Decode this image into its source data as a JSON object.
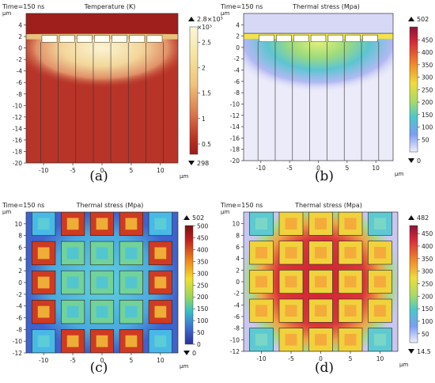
{
  "chart_data": [
    {
      "id": "a",
      "type": "heatmap",
      "caption": "(a)",
      "time_label": "Time=150 ns",
      "title": "Temperature (K)",
      "x_unit": "μm",
      "y_unit": "μm",
      "xlim": [
        -13,
        13
      ],
      "ylim": [
        -20,
        6
      ],
      "xticks": [
        -10,
        -5,
        0,
        5,
        10
      ],
      "yticks": [
        4,
        2,
        0,
        -2,
        -4,
        -6,
        -8,
        -10,
        -12,
        -14,
        -16,
        -18,
        -20
      ],
      "colorbar": {
        "max_label": "2.8×10³",
        "multiplier": "×10³",
        "ticks": [
          "2.5",
          "2",
          "1.5",
          "1",
          "0.5"
        ],
        "tick_values": [
          2.5,
          2,
          1.5,
          1,
          0.5
        ],
        "range": [
          0.298,
          2.8
        ],
        "min_label": "298",
        "palette": "thermal light"
      },
      "pillar_lines_x": [
        -10.5,
        -7.5,
        -4.5,
        -1.5,
        1.5,
        4.5,
        7.5,
        10.5
      ],
      "pillar_top_y": 1
    },
    {
      "id": "b",
      "type": "heatmap",
      "caption": "(b)",
      "time_label": "Time=150 ns",
      "title": "Thermal stress (Mpa)",
      "x_unit": "μm",
      "y_unit": "μm",
      "xlim": [
        -13,
        13
      ],
      "ylim": [
        -20,
        6
      ],
      "xticks": [
        -10,
        -5,
        0,
        5,
        10
      ],
      "yticks": [
        4,
        2,
        0,
        -2,
        -4,
        -6,
        -8,
        -10,
        -12,
        -14,
        -16,
        -18,
        -20
      ],
      "colorbar": {
        "max_label": "502",
        "ticks": [
          "450",
          "400",
          "350",
          "300",
          "250",
          "200",
          "150",
          "100",
          "50"
        ],
        "tick_values": [
          450,
          400,
          350,
          300,
          250,
          200,
          150,
          100,
          50
        ],
        "range": [
          0,
          502
        ],
        "min_label": "0",
        "palette": "rainbow light"
      },
      "pillar_lines_x": [
        -10.5,
        -7.5,
        -4.5,
        -1.5,
        1.5,
        4.5,
        7.5,
        10.5
      ],
      "pillar_top_y": 1
    },
    {
      "id": "c",
      "type": "heatmap",
      "caption": "(c)",
      "time_label": "Time=150 ns",
      "title": "Thermal stress (Mpa)",
      "x_unit": "μm",
      "y_unit": "μm",
      "xlim": [
        -13,
        13
      ],
      "ylim": [
        -12,
        12
      ],
      "xticks": [
        -10,
        -5,
        0,
        5,
        10
      ],
      "yticks": [
        10,
        8,
        6,
        4,
        2,
        0,
        -2,
        -4,
        -6,
        -8,
        -10,
        -12
      ],
      "colorbar": {
        "max_label": "502",
        "ticks": [
          "500",
          "450",
          "400",
          "350",
          "300",
          "250",
          "200",
          "150",
          "100",
          "50",
          "0"
        ],
        "tick_values": [
          500,
          450,
          400,
          350,
          300,
          250,
          200,
          150,
          100,
          50,
          0
        ],
        "range": [
          0,
          502
        ],
        "min_label": "0",
        "palette": "rainbow"
      },
      "grid": {
        "centers": [
          -10,
          -5,
          0,
          5,
          10
        ],
        "pad_size": 4
      }
    },
    {
      "id": "d",
      "type": "heatmap",
      "caption": "(d)",
      "time_label": "Time=150 ns",
      "title": "Thermal stress (Mpa)",
      "x_unit": "μm",
      "y_unit": "μm",
      "xlim": [
        -13,
        13
      ],
      "ylim": [
        -12,
        12
      ],
      "xticks": [
        -10,
        -5,
        0,
        5,
        10
      ],
      "yticks": [
        10,
        8,
        6,
        4,
        2,
        0,
        -2,
        -4,
        -6,
        -8,
        -10,
        -12
      ],
      "colorbar": {
        "max_label": "482",
        "ticks": [
          "450",
          "400",
          "350",
          "300",
          "250",
          "200",
          "150",
          "100",
          "50"
        ],
        "tick_values": [
          450,
          400,
          350,
          300,
          250,
          200,
          150,
          100,
          50
        ],
        "range": [
          14.5,
          482
        ],
        "min_label": "14.5",
        "palette": "rainbow light"
      },
      "grid": {
        "centers": [
          -10,
          -5,
          0,
          5,
          10
        ],
        "pad_size": 4
      }
    }
  ]
}
